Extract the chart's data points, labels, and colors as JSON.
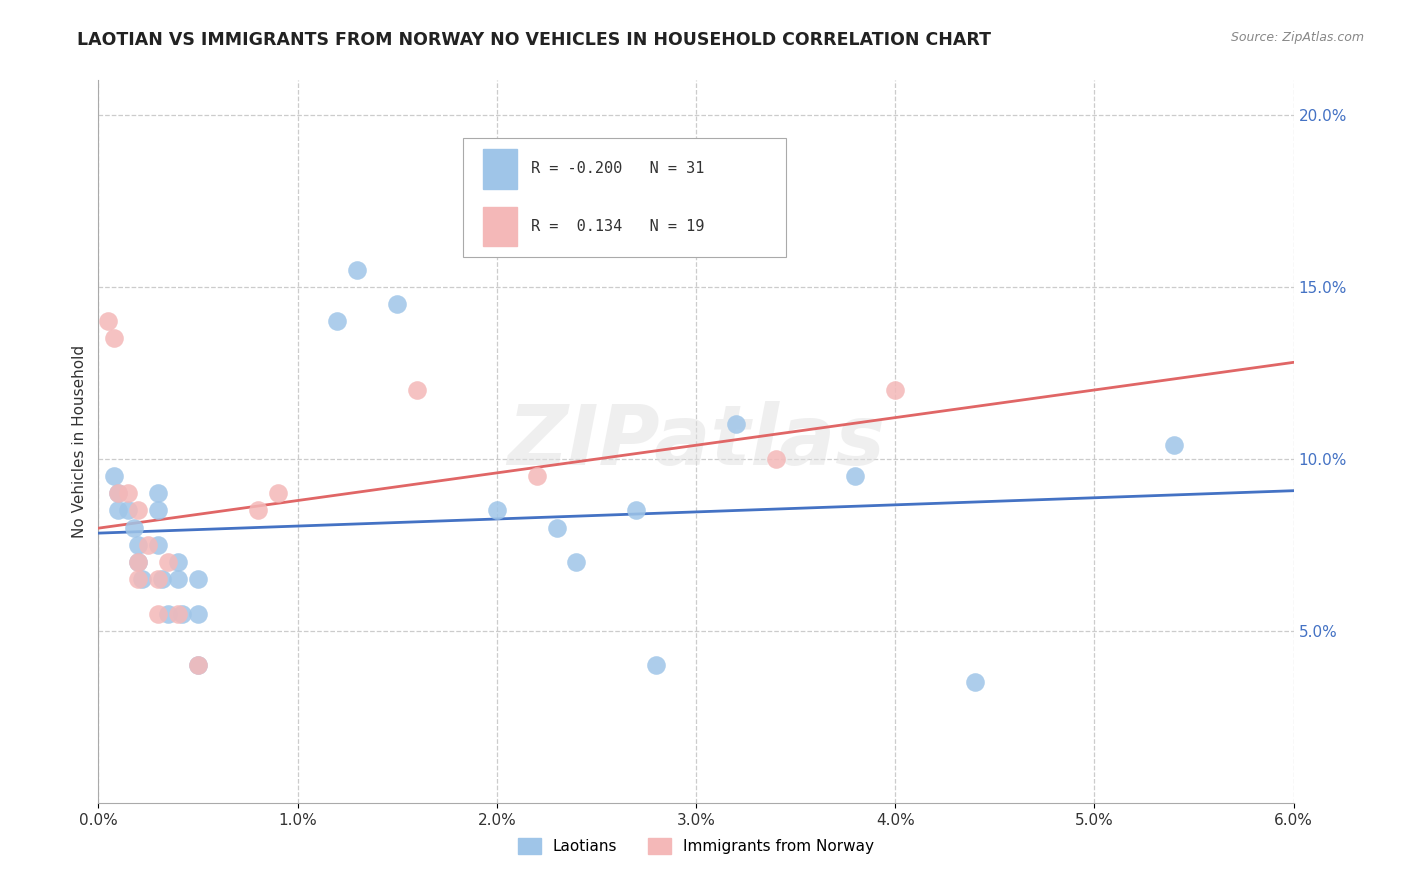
{
  "title": "LAOTIAN VS IMMIGRANTS FROM NORWAY NO VEHICLES IN HOUSEHOLD CORRELATION CHART",
  "source": "Source: ZipAtlas.com",
  "ylabel": "No Vehicles in Household",
  "xlim": [
    0.0,
    0.06
  ],
  "ylim": [
    0.0,
    0.21
  ],
  "xticks": [
    0.0,
    0.01,
    0.02,
    0.03,
    0.04,
    0.05,
    0.06
  ],
  "yticks": [
    0.05,
    0.1,
    0.15,
    0.2
  ],
  "ytick_labels": [
    "5.0%",
    "10.0%",
    "15.0%",
    "20.0%"
  ],
  "xtick_labels": [
    "0.0%",
    "1.0%",
    "2.0%",
    "3.0%",
    "4.0%",
    "5.0%",
    "6.0%"
  ],
  "legend_r1": "R = -0.200",
  "legend_n1": "N = 31",
  "legend_r2": "R =  0.134",
  "legend_n2": "N = 19",
  "legend_label1": "Laotians",
  "legend_label2": "Immigrants from Norway",
  "color_blue": "#9fc5e8",
  "color_pink": "#f4b8b8",
  "trend_color_blue": "#4472c4",
  "trend_color_pink": "#e06666",
  "ytick_color": "#4472c4",
  "watermark_text": "ZIPatlas",
  "background_color": "#ffffff",
  "grid_color": "#cccccc",
  "laotian_x": [
    0.0008,
    0.001,
    0.001,
    0.0015,
    0.0018,
    0.002,
    0.002,
    0.0022,
    0.003,
    0.003,
    0.003,
    0.0032,
    0.0035,
    0.004,
    0.004,
    0.0042,
    0.005,
    0.005,
    0.005,
    0.012,
    0.013,
    0.015,
    0.02,
    0.023,
    0.024,
    0.027,
    0.028,
    0.032,
    0.038,
    0.044,
    0.054
  ],
  "laotian_y": [
    0.095,
    0.09,
    0.085,
    0.085,
    0.08,
    0.075,
    0.07,
    0.065,
    0.09,
    0.085,
    0.075,
    0.065,
    0.055,
    0.07,
    0.065,
    0.055,
    0.065,
    0.055,
    0.04,
    0.14,
    0.155,
    0.145,
    0.085,
    0.08,
    0.07,
    0.085,
    0.04,
    0.11,
    0.095,
    0.035,
    0.104
  ],
  "norway_x": [
    0.0005,
    0.0008,
    0.001,
    0.0015,
    0.002,
    0.002,
    0.002,
    0.0025,
    0.003,
    0.003,
    0.0035,
    0.004,
    0.005,
    0.008,
    0.009,
    0.016,
    0.022,
    0.034,
    0.04
  ],
  "norway_y": [
    0.14,
    0.135,
    0.09,
    0.09,
    0.085,
    0.07,
    0.065,
    0.075,
    0.065,
    0.055,
    0.07,
    0.055,
    0.04,
    0.085,
    0.09,
    0.12,
    0.095,
    0.1,
    0.12
  ]
}
